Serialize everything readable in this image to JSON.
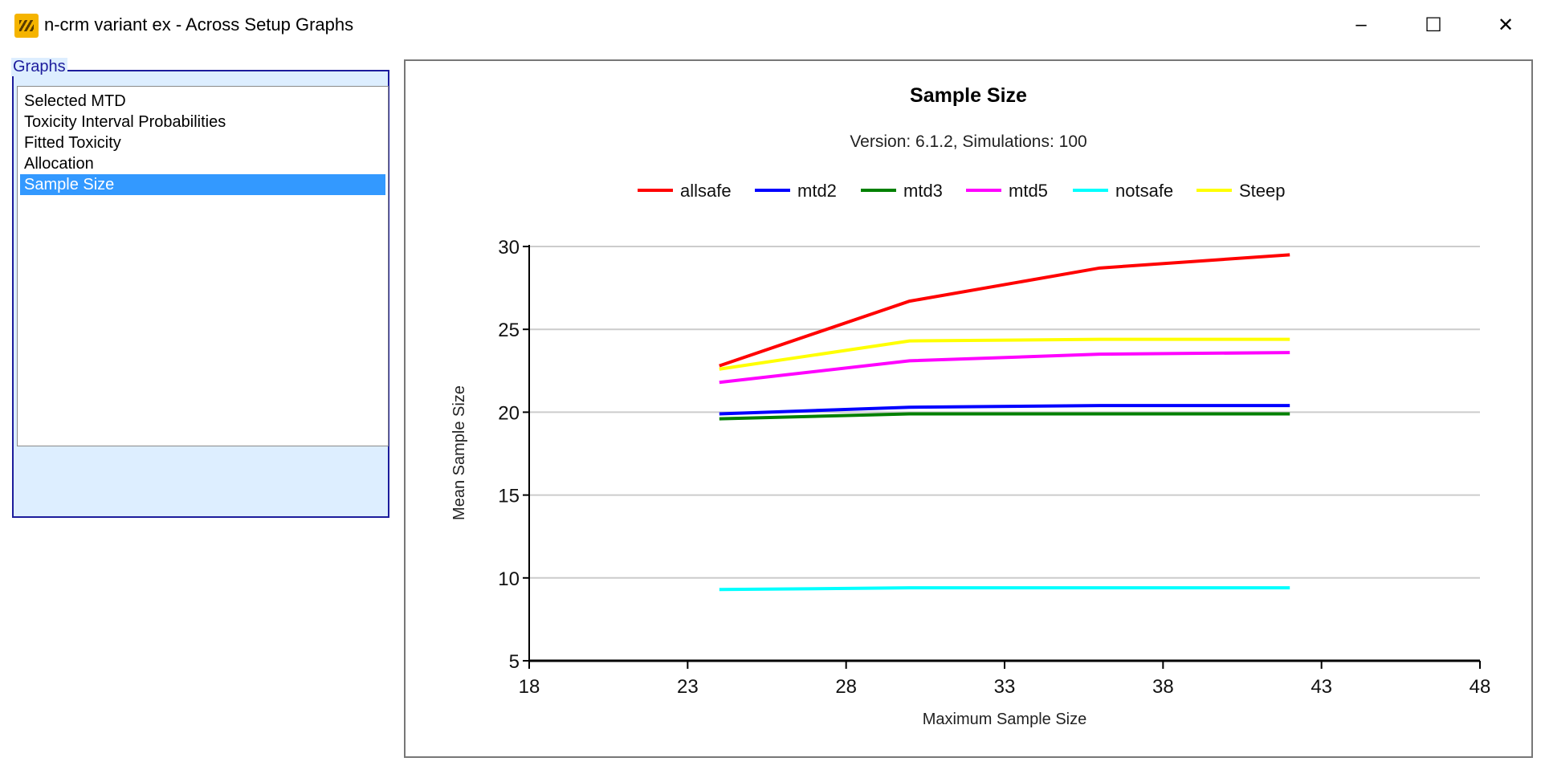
{
  "window": {
    "title": "n-crm variant ex - Across Setup Graphs",
    "minimize": "–",
    "maximize": "☐",
    "close": "✕"
  },
  "sidebar": {
    "group_label": "Graphs",
    "items": [
      {
        "label": "Selected MTD",
        "selected": false
      },
      {
        "label": "Toxicity Interval Probabilities",
        "selected": false
      },
      {
        "label": "Fitted Toxicity",
        "selected": false
      },
      {
        "label": "Allocation",
        "selected": false
      },
      {
        "label": "Sample Size",
        "selected": true
      }
    ]
  },
  "chart_data": {
    "type": "line",
    "title": "Sample Size",
    "subtitle": "Version: 6.1.2, Simulations: 100",
    "xlabel": "Maximum Sample Size",
    "ylabel": "Mean Sample Size",
    "xlim": [
      18,
      48
    ],
    "ylim": [
      5,
      30
    ],
    "xticks": [
      18,
      23,
      28,
      33,
      38,
      43,
      48
    ],
    "yticks": [
      5,
      10,
      15,
      20,
      25,
      30
    ],
    "grid": "horizontal",
    "legend": "top",
    "x": [
      24,
      30,
      36,
      42
    ],
    "series": [
      {
        "name": "allsafe",
        "color": "#ff0000",
        "values": [
          22.8,
          26.7,
          28.7,
          29.5
        ]
      },
      {
        "name": "mtd2",
        "color": "#0000ff",
        "values": [
          19.9,
          20.3,
          20.4,
          20.4
        ]
      },
      {
        "name": "mtd3",
        "color": "#008000",
        "values": [
          19.6,
          19.9,
          19.9,
          19.9
        ]
      },
      {
        "name": "mtd5",
        "color": "#ff00ff",
        "values": [
          21.8,
          23.1,
          23.5,
          23.6
        ]
      },
      {
        "name": "notsafe",
        "color": "#00ffff",
        "values": [
          9.3,
          9.4,
          9.4,
          9.4
        ]
      },
      {
        "name": "Steep",
        "color": "#ffff00",
        "values": [
          22.6,
          24.3,
          24.4,
          24.4
        ]
      }
    ]
  }
}
